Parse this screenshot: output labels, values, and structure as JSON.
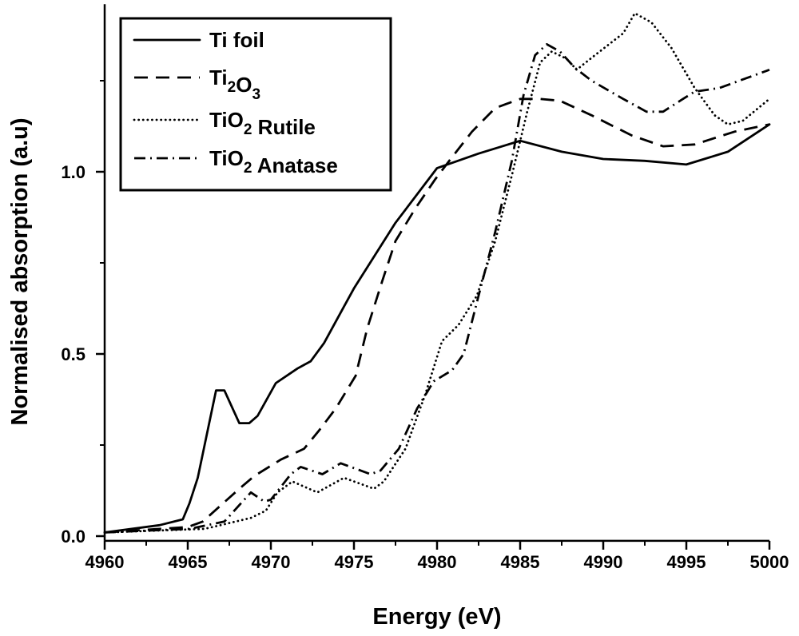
{
  "chart_data": {
    "type": "line",
    "title": "",
    "xlabel": "Energy (eV)",
    "ylabel": "Normalised absorption (a.u)",
    "xlim": [
      4960,
      5000
    ],
    "ylim": [
      -0.013,
      1.46
    ],
    "xticks": [
      4960,
      4965,
      4970,
      4975,
      4980,
      4985,
      4990,
      4995,
      5000
    ],
    "xtick_labels": [
      "4960",
      "4965",
      "4970",
      "4975",
      "4980",
      "4985",
      "4990",
      "4995",
      "5000"
    ],
    "yticks": [
      0.0,
      0.5,
      1.0
    ],
    "ytick_labels": [
      "0.0",
      "0.5",
      "1.0"
    ],
    "grid": false,
    "legend_position": "top-left",
    "series": [
      {
        "name": "Ti foil",
        "label_parts": [
          {
            "t": "Ti foil"
          }
        ],
        "style": "solid",
        "x": [
          4960,
          4963.3,
          4964.7,
          4965.1,
          4965.6,
          4966.7,
          4967.2,
          4968.1,
          4968.7,
          4969.2,
          4970.3,
          4971.6,
          4972.4,
          4973.2,
          4974.4,
          4975,
          4977.5,
          4980,
          4982.5,
          4985,
          4987.5,
          4990,
          4992.5,
          4995,
          4997.5,
          5000
        ],
        "y": [
          0.01,
          0.03,
          0.046,
          0.09,
          0.16,
          0.4,
          0.4,
          0.31,
          0.31,
          0.33,
          0.42,
          0.46,
          0.48,
          0.53,
          0.63,
          0.68,
          0.86,
          1.01,
          1.05,
          1.085,
          1.055,
          1.035,
          1.03,
          1.02,
          1.055,
          1.13
        ]
      },
      {
        "name": "Ti2O3",
        "label_parts": [
          {
            "t": "Ti"
          },
          {
            "t": "2",
            "sub": true
          },
          {
            "t": "O"
          },
          {
            "t": "3",
            "sub": true
          }
        ],
        "style": "dashed",
        "x": [
          4960,
          4965,
          4965.9,
          4968.1,
          4969,
          4970.6,
          4972,
          4972.9,
          4973.9,
          4975.1,
          4975.8,
          4976.7,
          4977.5,
          4978.7,
          4979.9,
          4980.9,
          4982.1,
          4983.5,
          4985,
          4986.2,
          4987.4,
          4989.3,
          4991.7,
          4993.6,
          4995.5,
          4997.9,
          5000
        ],
        "y": [
          0.01,
          0.025,
          0.04,
          0.13,
          0.165,
          0.21,
          0.24,
          0.29,
          0.35,
          0.44,
          0.57,
          0.7,
          0.81,
          0.9,
          0.98,
          1.04,
          1.11,
          1.175,
          1.2,
          1.2,
          1.195,
          1.155,
          1.1,
          1.07,
          1.075,
          1.11,
          1.13
        ]
      },
      {
        "name": "TiO2 Rutile",
        "label_parts": [
          {
            "t": "TiO"
          },
          {
            "t": "2",
            "sub": true
          },
          {
            "t": " Rutile"
          }
        ],
        "style": "dotted",
        "x": [
          4960,
          4966,
          4966.5,
          4968.8,
          4969.7,
          4970.4,
          4971.3,
          4972.8,
          4974.4,
          4976.2,
          4976.8,
          4978.1,
          4979.3,
          4980.3,
          4981.3,
          4982.4,
          4983.5,
          4984.5,
          4985.4,
          4986.2,
          4986.9,
          4987.8,
          4988.4,
          4989.5,
          4991.2,
          4991.9,
          4992.9,
          4994.1,
          4995.5,
          4996.7,
          4997.5,
          4998.4,
          5000
        ],
        "y": [
          0.01,
          0.02,
          0.025,
          0.05,
          0.07,
          0.12,
          0.15,
          0.12,
          0.16,
          0.13,
          0.15,
          0.24,
          0.39,
          0.535,
          0.58,
          0.66,
          0.81,
          0.99,
          1.16,
          1.3,
          1.33,
          1.31,
          1.28,
          1.32,
          1.38,
          1.435,
          1.41,
          1.34,
          1.23,
          1.155,
          1.13,
          1.14,
          1.2
        ]
      },
      {
        "name": "TiO2 Anatase",
        "label_parts": [
          {
            "t": "TiO"
          },
          {
            "t": "2",
            "sub": true
          },
          {
            "t": " Anatase"
          }
        ],
        "style": "dash-dot",
        "x": [
          4960,
          4965.1,
          4967.2,
          4968.8,
          4969.6,
          4970.0,
          4971.2,
          4971.8,
          4973.1,
          4974.2,
          4976,
          4976.6,
          4977.7,
          4978.8,
          4979.8,
          4980.9,
          4981.6,
          4982.5,
          4983.5,
          4984.5,
          4985.2,
          4985.9,
          4986.6,
          4987.4,
          4988.3,
          4989.3,
          4991.2,
          4992.6,
          4993.6,
          4994.8,
          4995.5,
          4997,
          5000
        ],
        "y": [
          0.01,
          0.02,
          0.04,
          0.12,
          0.095,
          0.1,
          0.17,
          0.19,
          0.17,
          0.2,
          0.17,
          0.18,
          0.24,
          0.35,
          0.425,
          0.455,
          0.5,
          0.66,
          0.835,
          1.03,
          1.21,
          1.32,
          1.35,
          1.33,
          1.285,
          1.25,
          1.2,
          1.165,
          1.165,
          1.2,
          1.22,
          1.23,
          1.28
        ]
      }
    ],
    "colors": {
      "line": "#000000",
      "background": "#ffffff"
    }
  }
}
